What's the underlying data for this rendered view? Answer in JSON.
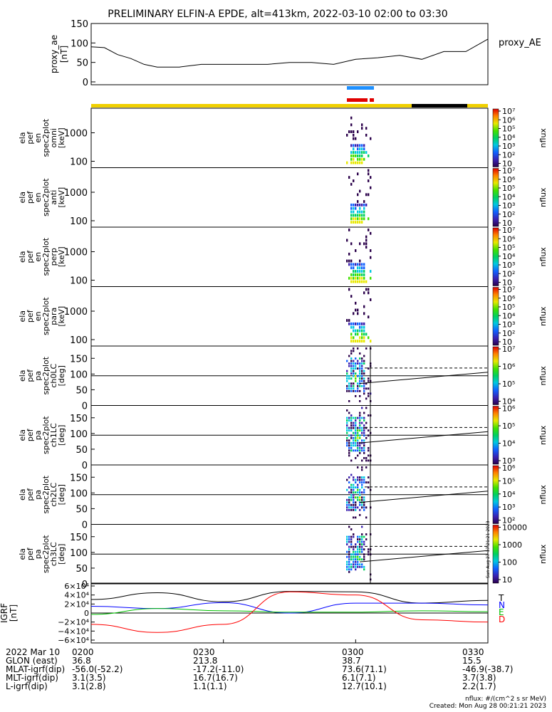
{
  "title": "PRELIMINARY ELFIN-A EPDE, alt=413km, 2022-03-10 02:00 to 03:30",
  "chart_data": [
    {
      "type": "line",
      "name": "proxy_ae",
      "ylabel": "proxy_ae [nT]",
      "ylabel_lines": [
        "proxy_ae",
        "[nT]"
      ],
      "legend": "proxy_AE",
      "ylim": [
        0,
        150
      ],
      "yticks": [
        "0",
        "50",
        "100",
        "150"
      ],
      "x": [
        "02:00",
        "02:03",
        "02:06",
        "02:09",
        "02:12",
        "02:15",
        "02:20",
        "02:25",
        "02:30",
        "02:35",
        "02:40",
        "02:45",
        "02:50",
        "02:55",
        "03:00",
        "03:05",
        "03:10",
        "03:15",
        "03:20",
        "03:25",
        "03:30"
      ],
      "values": [
        90,
        88,
        70,
        60,
        45,
        38,
        38,
        45,
        45,
        45,
        45,
        50,
        50,
        45,
        58,
        62,
        68,
        58,
        78,
        78,
        110
      ]
    },
    {
      "type": "heatmap",
      "ylabel_lines": [
        "ela",
        "pef",
        "en",
        "spec2plot",
        "omni",
        "[keV]"
      ],
      "yticks": [
        "100",
        "1000"
      ],
      "scale": "log",
      "zlabel": "nflux",
      "zticks": [
        "10",
        "10²",
        "10³",
        "10⁴",
        "10⁵",
        "10⁶",
        "10⁷"
      ]
    },
    {
      "type": "heatmap",
      "ylabel_lines": [
        "ela",
        "pef",
        "en",
        "spec2plot",
        "anti",
        "[keV]"
      ],
      "yticks": [
        "100",
        "1000"
      ],
      "scale": "log",
      "zlabel": "nflux",
      "zticks": [
        "10",
        "10²",
        "10³",
        "10⁴",
        "10⁵",
        "10⁶",
        "10⁷"
      ]
    },
    {
      "type": "heatmap",
      "ylabel_lines": [
        "ela",
        "pef",
        "en",
        "spec2plot",
        "perp",
        "[keV]"
      ],
      "yticks": [
        "100",
        "1000"
      ],
      "scale": "log",
      "zlabel": "nflux",
      "zticks": [
        "10",
        "10²",
        "10³",
        "10⁴",
        "10⁵",
        "10⁶",
        "10⁷"
      ]
    },
    {
      "type": "heatmap",
      "ylabel_lines": [
        "ela",
        "pef",
        "en",
        "spec2plot",
        "para",
        "[keV]"
      ],
      "yticks": [
        "100",
        "1000"
      ],
      "scale": "log",
      "zlabel": "nflux",
      "zticks": [
        "10",
        "10²",
        "10³",
        "10⁴",
        "10⁵",
        "10⁶",
        "10⁷"
      ]
    },
    {
      "type": "heatmap",
      "ylabel_lines": [
        "ela",
        "pef",
        "pa",
        "spec2plot",
        "ch0LC",
        "[deg]"
      ],
      "yticks": [
        "0",
        "50",
        "100",
        "150"
      ],
      "ylim": [
        0,
        180
      ],
      "zlabel": "nflux",
      "zticks": [
        "10⁴",
        "10⁵",
        "10⁶",
        "10⁷"
      ]
    },
    {
      "type": "heatmap",
      "ylabel_lines": [
        "ela",
        "pef",
        "pa",
        "spec2plot",
        "ch1LC",
        "[deg]"
      ],
      "yticks": [
        "0",
        "50",
        "100",
        "150"
      ],
      "ylim": [
        0,
        180
      ],
      "zlabel": "nflux",
      "zticks": [
        "10³",
        "10⁴",
        "10⁵",
        "10⁶"
      ]
    },
    {
      "type": "heatmap",
      "ylabel_lines": [
        "ela",
        "pef",
        "pa",
        "spec2plot",
        "ch2LC",
        "[deg]"
      ],
      "yticks": [
        "0",
        "50",
        "100",
        "150"
      ],
      "ylim": [
        0,
        180
      ],
      "zlabel": "nflux",
      "zticks": [
        "10²",
        "10³",
        "10⁴",
        "10⁵",
        "10⁶"
      ]
    },
    {
      "type": "heatmap",
      "ylabel_lines": [
        "ela",
        "pef",
        "pa",
        "spec2plot",
        "ch3LC",
        "[deg]"
      ],
      "yticks": [
        "0",
        "50",
        "100",
        "150"
      ],
      "ylim": [
        0,
        180
      ],
      "zlabel": "nflux",
      "zticks": [
        "10",
        "100",
        "1000",
        "10000"
      ]
    },
    {
      "type": "line",
      "name": "IGRF",
      "ylabel_lines": [
        "IGRF",
        "[nT]"
      ],
      "ylim": [
        -60000,
        60000
      ],
      "yticks": [
        "−6×10⁴",
        "−4×10⁴",
        "−2×10⁴",
        "0",
        "2×10⁴",
        "4×10⁴",
        "6×10⁴"
      ],
      "ytick_values": [
        -60000,
        -40000,
        -20000,
        0,
        20000,
        40000,
        60000
      ],
      "series": [
        {
          "name": "T",
          "color": "#000000",
          "x": [
            0,
            15,
            30,
            45,
            60,
            75,
            90
          ],
          "values": [
            30000,
            45000,
            25000,
            48000,
            47000,
            22000,
            28000
          ]
        },
        {
          "name": "N",
          "color": "#0000ff",
          "x": [
            0,
            15,
            30,
            45,
            60,
            75,
            90
          ],
          "values": [
            15000,
            10000,
            23000,
            0,
            22000,
            22000,
            18000
          ]
        },
        {
          "name": "E",
          "color": "#00c000",
          "x": [
            0,
            15,
            30,
            45,
            60,
            75,
            90
          ],
          "values": [
            -3000,
            10000,
            5000,
            2000,
            2000,
            5000,
            3000
          ]
        },
        {
          "name": "D",
          "color": "#ff0000",
          "x": [
            0,
            15,
            30,
            45,
            60,
            75,
            90
          ],
          "values": [
            -25000,
            -43000,
            -25000,
            47000,
            40000,
            -15000,
            -20000
          ]
        }
      ]
    }
  ],
  "footer": {
    "rows": [
      [
        "2022 Mar 10",
        "0200",
        "0230",
        "0300",
        "0330"
      ],
      [
        "GLON (east)",
        "36.8",
        "213.8",
        "38.7",
        "15.5"
      ],
      [
        "MLAT-igrf(dip)",
        "-56.0(-52.2)",
        "-17.2(-11.0)",
        "73.6(71.1)",
        "-46.9(-38.7)"
      ],
      [
        "MLT-igrf(dip)",
        "3.1(3.5)",
        "16.7(16.7)",
        "6.1(7.1)",
        "3.7(3.8)"
      ],
      [
        "L-igrf(dip)",
        "3.1(2.8)",
        "1.1(1.1)",
        "12.7(10.1)",
        "2.2(1.7)"
      ]
    ],
    "units": "nflux: #/(cm^2 s sr MeV)",
    "created": "Created: Mon Aug 28 00:21:21 2023",
    "stamp": "Sun Aug 27 17:21:21 2023"
  },
  "colors": {
    "sunlight_bar": "#f0d000",
    "eclipse_bar": "#000000",
    "science_blue": "#1e90ff",
    "science_red": "#e00000"
  }
}
